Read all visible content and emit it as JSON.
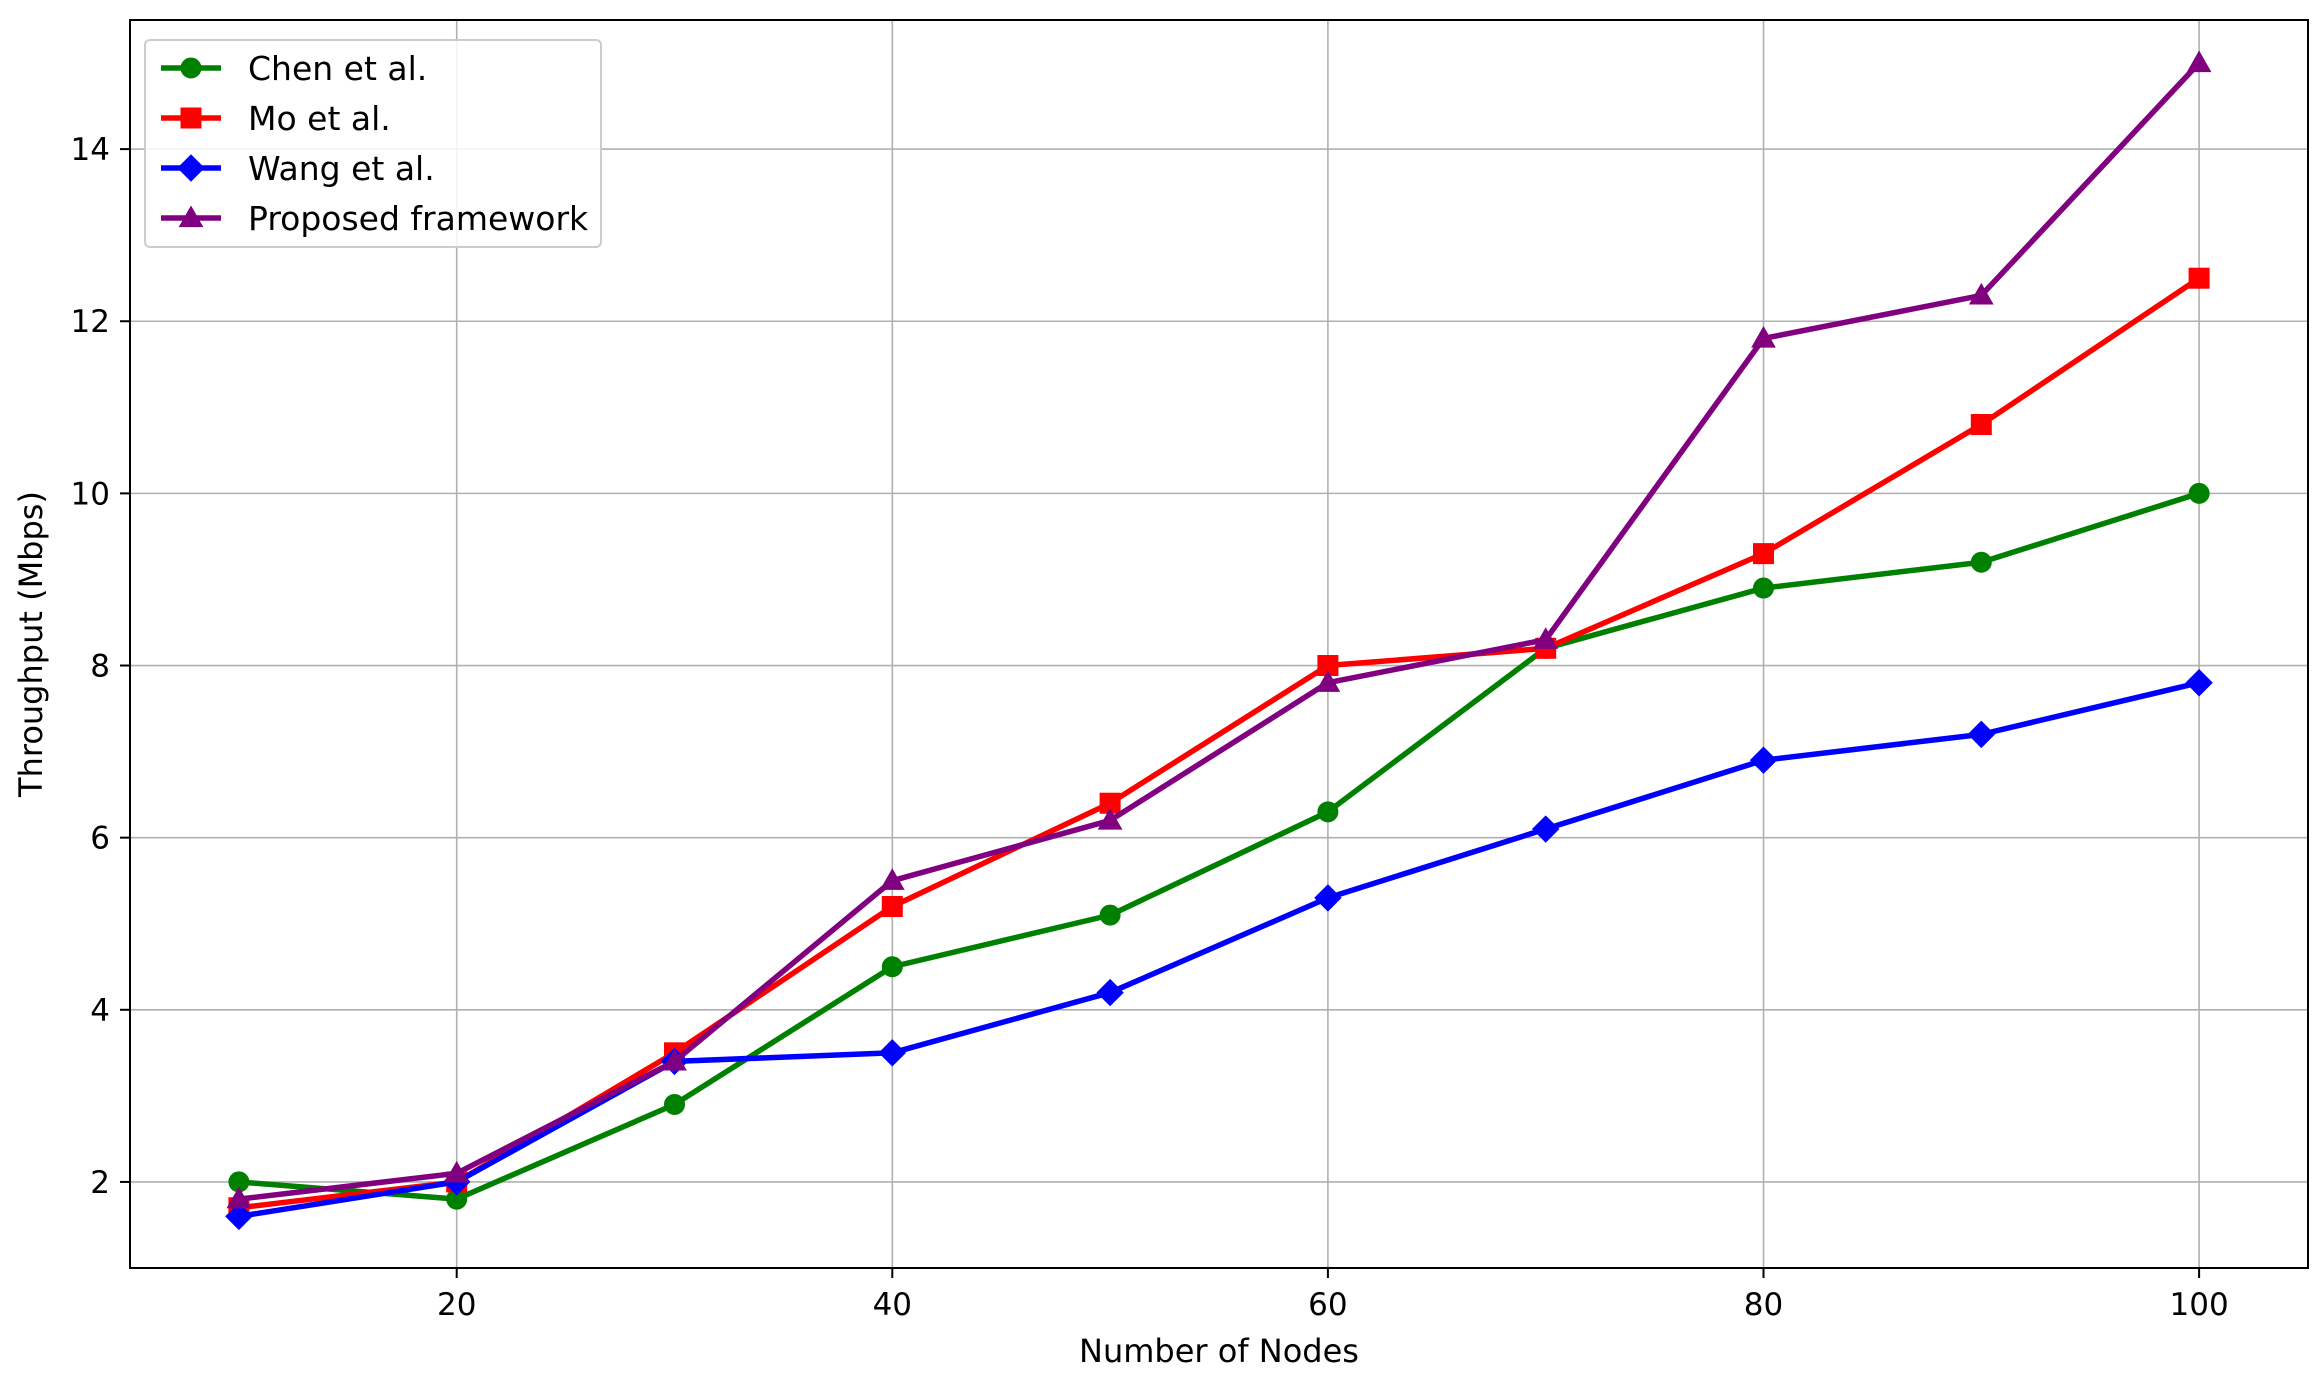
{
  "chart_data": {
    "type": "line",
    "title": "",
    "xlabel": "Number of Nodes",
    "ylabel": "Throughput (Mbps)",
    "x": [
      10,
      20,
      30,
      40,
      50,
      60,
      70,
      80,
      90,
      100
    ],
    "xlim": [
      5,
      105
    ],
    "ylim": [
      1,
      15.5
    ],
    "xticks": [
      20,
      40,
      60,
      80,
      100
    ],
    "yticks": [
      2,
      4,
      6,
      8,
      10,
      12,
      14
    ],
    "grid": true,
    "legend_position": "top-left",
    "series": [
      {
        "name": "Chen et al.",
        "color": "#008000",
        "marker": "circle",
        "values": [
          2.0,
          1.8,
          2.9,
          4.5,
          5.1,
          6.3,
          8.2,
          8.9,
          9.2,
          10.0
        ]
      },
      {
        "name": "Mo et al.",
        "color": "#ff0000",
        "marker": "square",
        "values": [
          1.7,
          2.0,
          3.5,
          5.2,
          6.4,
          8.0,
          8.2,
          9.3,
          10.8,
          12.5
        ]
      },
      {
        "name": "Wang et al.",
        "color": "#0000ff",
        "marker": "diamond",
        "values": [
          1.6,
          2.0,
          3.4,
          3.5,
          4.2,
          5.3,
          6.1,
          6.9,
          7.2,
          7.8
        ]
      },
      {
        "name": "Proposed framework",
        "color": "#800080",
        "marker": "triangle",
        "values": [
          1.8,
          2.1,
          3.4,
          5.5,
          6.2,
          7.8,
          8.3,
          11.8,
          12.3,
          15.0
        ]
      }
    ]
  }
}
